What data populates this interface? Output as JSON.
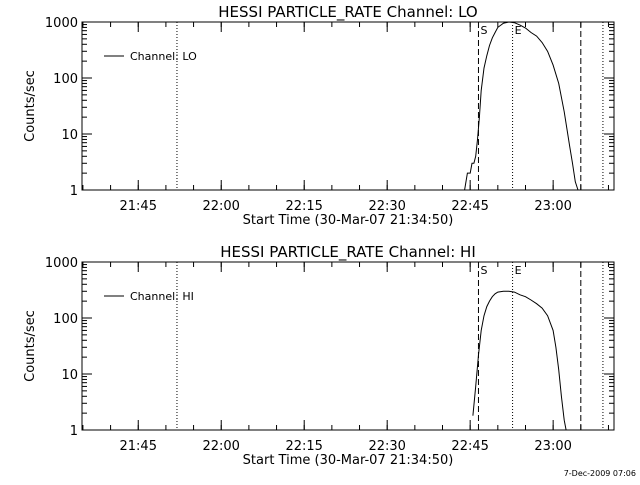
{
  "footer_timestamp": "7-Dec-2009 07:06",
  "chart_data": [
    {
      "type": "line",
      "title": "HESSI PARTICLE_RATE Channel: LO",
      "xlabel": "Start Time (30-Mar-07 21:34:50)",
      "ylabel": "Counts/sec",
      "yscale": "log",
      "ylim": [
        1,
        1000
      ],
      "xlim": [
        "21:34:50",
        "23:11:00"
      ],
      "yticks": [
        1,
        10,
        100,
        1000
      ],
      "ytick_labels": [
        "1",
        "10",
        "100",
        "1000"
      ],
      "xticks": [
        "21:45",
        "22:00",
        "22:15",
        "22:30",
        "22:45",
        "23:00"
      ],
      "legend": {
        "position": "top-left",
        "entries": [
          "Channel: LO"
        ]
      },
      "vlines": [
        {
          "x": "21:52:00",
          "style": "dotted",
          "label": ""
        },
        {
          "x": "22:46:30",
          "style": "dashed",
          "label": "S"
        },
        {
          "x": "22:52:40",
          "style": "dotted",
          "label": "E"
        },
        {
          "x": "23:05:00",
          "style": "dashed",
          "label": ""
        },
        {
          "x": "23:09:00",
          "style": "dotted",
          "label": ""
        }
      ],
      "series": [
        {
          "name": "Channel: LO",
          "x": [
            "22:44:00",
            "22:44:30",
            "22:45:00",
            "22:45:20",
            "22:45:40",
            "22:46:00",
            "22:46:20",
            "22:46:40",
            "22:47:00",
            "22:47:30",
            "22:48:00",
            "22:48:30",
            "22:49:00",
            "22:49:30",
            "22:50:00",
            "22:51:00",
            "22:52:00",
            "22:53:00",
            "22:54:00",
            "22:55:00",
            "22:56:00",
            "22:57:00",
            "22:58:00",
            "22:59:00",
            "23:00:00",
            "23:01:00",
            "23:02:00",
            "23:03:00",
            "23:03:30",
            "23:04:00",
            "23:04:30"
          ],
          "y": [
            1,
            2,
            2,
            3,
            3,
            4,
            8,
            20,
            60,
            150,
            250,
            380,
            520,
            650,
            800,
            950,
            1000,
            970,
            880,
            780,
            650,
            560,
            430,
            300,
            170,
            80,
            25,
            6,
            3,
            1.4,
            1
          ]
        }
      ]
    },
    {
      "type": "line",
      "title": "HESSI PARTICLE_RATE Channel: HI",
      "xlabel": "Start Time (30-Mar-07 21:34:50)",
      "ylabel": "Counts/sec",
      "yscale": "log",
      "ylim": [
        1,
        1000
      ],
      "xlim": [
        "21:34:50",
        "23:11:00"
      ],
      "yticks": [
        1,
        10,
        100,
        1000
      ],
      "ytick_labels": [
        "1",
        "10",
        "100",
        "1000"
      ],
      "xticks": [
        "21:45",
        "22:00",
        "22:15",
        "22:30",
        "22:45",
        "23:00"
      ],
      "legend": {
        "position": "top-left",
        "entries": [
          "Channel: HI"
        ]
      },
      "vlines": [
        {
          "x": "21:52:00",
          "style": "dotted",
          "label": ""
        },
        {
          "x": "22:46:30",
          "style": "dashed",
          "label": "S"
        },
        {
          "x": "22:52:40",
          "style": "dotted",
          "label": "E"
        },
        {
          "x": "23:05:00",
          "style": "dashed",
          "label": ""
        },
        {
          "x": "23:09:00",
          "style": "dotted",
          "label": ""
        }
      ],
      "series": [
        {
          "name": "Channel: HI",
          "x": [
            "22:45:30",
            "22:46:00",
            "22:46:30",
            "22:47:00",
            "22:47:30",
            "22:48:00",
            "22:48:30",
            "22:49:00",
            "22:49:30",
            "22:50:00",
            "22:51:00",
            "22:52:00",
            "22:53:00",
            "22:54:00",
            "22:55:00",
            "22:56:00",
            "22:57:00",
            "22:58:00",
            "22:59:00",
            "23:00:00",
            "23:00:30",
            "23:01:00",
            "23:01:30",
            "23:02:00",
            "23:02:20"
          ],
          "y": [
            1.8,
            6,
            22,
            60,
            110,
            160,
            200,
            240,
            270,
            290,
            300,
            300,
            290,
            260,
            240,
            210,
            180,
            150,
            110,
            60,
            30,
            12,
            4,
            1.5,
            1
          ]
        }
      ]
    }
  ]
}
